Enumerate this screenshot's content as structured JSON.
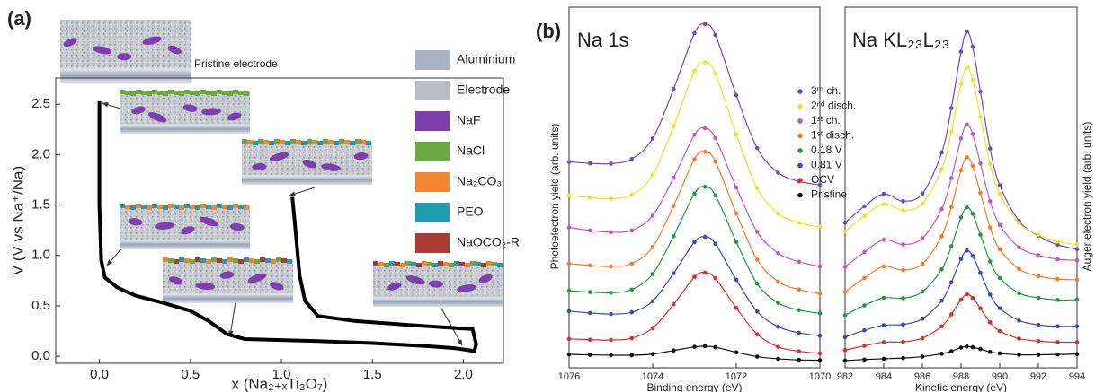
{
  "panel_labels": [
    "(a)",
    "(b)"
  ],
  "chart_data": [
    {
      "type": "line",
      "xlabel": "x (Na₂₊ₓTi₃O₇)",
      "ylabel": "V (V vs Na⁺/Na)",
      "color": "#000000",
      "x": [
        0.0,
        0.0,
        0.01,
        0.03,
        0.1,
        0.2,
        0.35,
        0.5,
        0.6,
        0.7,
        0.8,
        1.0,
        1.2,
        1.5,
        1.8,
        1.95,
        2.03,
        2.06,
        2.07,
        2.05,
        1.95,
        1.7,
        1.4,
        1.2,
        1.13,
        1.1,
        1.08,
        1.06
      ],
      "values": [
        2.53,
        1.5,
        0.95,
        0.78,
        0.68,
        0.6,
        0.53,
        0.45,
        0.35,
        0.22,
        0.17,
        0.16,
        0.15,
        0.13,
        0.1,
        0.08,
        0.06,
        0.05,
        0.12,
        0.27,
        0.28,
        0.31,
        0.35,
        0.4,
        0.55,
        0.8,
        1.2,
        1.58
      ],
      "xlim": [
        -0.24,
        2.22
      ],
      "ylim": [
        -0.07,
        2.76
      ],
      "xticks": [
        {
          "value": 0,
          "label": "0.0"
        },
        {
          "value": 0.5,
          "label": "0.5"
        },
        {
          "value": 1,
          "label": "1.0"
        },
        {
          "value": 1.5,
          "label": "1.5"
        },
        {
          "value": 2,
          "label": "2.0"
        }
      ],
      "yticks": [
        {
          "value": 0,
          "label": "0.0"
        },
        {
          "value": 0.5,
          "label": "0.5"
        },
        {
          "value": 1,
          "label": "1.0"
        },
        {
          "value": 1.5,
          "label": "1.5"
        },
        {
          "value": 2,
          "label": "2.0"
        },
        {
          "value": 2.5,
          "label": "2.5"
        }
      ],
      "annotations": [
        "Pristine electrode"
      ],
      "legend": [
        {
          "name": "Aluminium",
          "color": "#a9b2c2"
        },
        {
          "name": "Electrode",
          "color": "#b9bcc2"
        },
        {
          "name": "NaF",
          "color": "#7d3fae"
        },
        {
          "name": "NaCl",
          "color": "#6ea845"
        },
        {
          "name": "Na₂CO₃",
          "color": "#f5842e"
        },
        {
          "name": "PEO",
          "color": "#1f9bb0"
        },
        {
          "name": "NaOCO₂-R",
          "color": "#a83b32"
        }
      ]
    },
    {
      "type": "line",
      "title": "Na 1s",
      "xlabel": "Binding energy (eV)",
      "ylabel": "Photoelectron yield (arb. units)",
      "x": [
        1076,
        1075.5,
        1075,
        1074.5,
        1074,
        1073.5,
        1073,
        1072.75,
        1072.5,
        1072,
        1071.5,
        1071,
        1070.5,
        1070
      ],
      "xlim": [
        1076,
        1070
      ],
      "xticks": [
        1076,
        1074,
        1072,
        1070
      ],
      "ylim": [
        0,
        10
      ],
      "series": [
        {
          "name": "3ʳᵈ ch.",
          "color": "#7048c0",
          "values": [
            5.71,
            5.67,
            5.66,
            5.79,
            6.36,
            7.73,
            9.28,
            9.53,
            9.23,
            7.56,
            6.09,
            5.41,
            5.17,
            5.07
          ]
        },
        {
          "name": "2ⁿᵈ disch.",
          "color": "#ece41e",
          "values": [
            4.78,
            4.72,
            4.69,
            4.8,
            5.35,
            6.7,
            8.23,
            8.47,
            8.16,
            6.47,
            4.98,
            4.28,
            4.02,
            3.9
          ]
        },
        {
          "name": "1ˢᵗ ch.",
          "color": "#c355c3",
          "values": [
            3.89,
            3.81,
            3.76,
            3.81,
            4.22,
            5.27,
            6.46,
            6.64,
            6.37,
            5.0,
            3.77,
            3.18,
            2.94,
            2.81
          ]
        },
        {
          "name": "1ˢᵗ disch.",
          "color": "#f47a2a",
          "values": [
            2.89,
            2.84,
            2.81,
            2.89,
            3.35,
            4.49,
            5.79,
            5.99,
            5.72,
            4.28,
            3.0,
            2.39,
            2.17,
            2.06
          ]
        },
        {
          "name": "0.18 V",
          "color": "#1c9a3c",
          "values": [
            2.14,
            2.1,
            2.08,
            2.17,
            2.6,
            3.65,
            4.83,
            5.02,
            4.78,
            3.49,
            2.33,
            1.8,
            1.6,
            1.51
          ]
        },
        {
          "name": "0.81 V",
          "color": "#3848b8",
          "values": [
            1.57,
            1.52,
            1.49,
            1.54,
            1.85,
            2.62,
            3.49,
            3.63,
            3.44,
            2.44,
            1.56,
            1.14,
            0.97,
            0.89
          ]
        },
        {
          "name": "OCV",
          "color": "#e22a2a",
          "values": [
            0.8,
            0.78,
            0.77,
            0.82,
            1.1,
            1.76,
            2.52,
            2.64,
            2.48,
            1.66,
            0.93,
            0.58,
            0.46,
            0.4
          ]
        },
        {
          "name": "Pristine",
          "color": "#111111",
          "values": [
            0.37,
            0.36,
            0.35,
            0.35,
            0.38,
            0.48,
            0.58,
            0.6,
            0.57,
            0.43,
            0.31,
            0.25,
            0.22,
            0.21
          ]
        }
      ]
    },
    {
      "type": "line",
      "title": "Na KL₂₃L₂₃",
      "xlabel": "Kinetic energy (eV)",
      "ylabel": "Auger electron yield (arb. units)",
      "x": [
        982,
        983,
        984,
        985,
        986,
        987,
        987.5,
        988,
        988.3,
        988.6,
        989,
        989.5,
        990,
        991,
        992,
        993,
        994
      ],
      "xlim": [
        982,
        994
      ],
      "xticks": [
        982,
        984,
        986,
        988,
        990,
        992,
        994
      ],
      "ylim": [
        0,
        10
      ],
      "series": [
        {
          "color": "#7048c0",
          "values": [
            4.02,
            4.48,
            4.82,
            4.62,
            4.83,
            5.97,
            7.2,
            8.77,
            9.32,
            8.9,
            7.66,
            6.08,
            5.06,
            4.07,
            3.66,
            3.41,
            3.29
          ]
        },
        {
          "color": "#ece41e",
          "values": [
            3.78,
            4.21,
            4.54,
            4.37,
            4.55,
            5.51,
            6.55,
            7.87,
            8.34,
            7.99,
            6.97,
            5.65,
            4.82,
            4.01,
            3.69,
            3.5,
            3.42
          ]
        },
        {
          "color": "#c355c3",
          "values": [
            2.8,
            3.21,
            3.55,
            3.42,
            3.59,
            4.4,
            5.26,
            6.36,
            6.75,
            6.48,
            5.67,
            4.62,
            3.96,
            3.34,
            3.12,
            3.01,
            2.98
          ]
        },
        {
          "color": "#f47a2a",
          "values": [
            2.1,
            2.49,
            2.81,
            2.71,
            2.88,
            3.65,
            4.46,
            5.48,
            5.84,
            5.6,
            4.85,
            3.89,
            3.29,
            2.74,
            2.54,
            2.46,
            2.44
          ]
        },
        {
          "color": "#1c9a3c",
          "values": [
            1.46,
            1.73,
            1.94,
            1.93,
            2.11,
            2.73,
            3.37,
            4.17,
            4.45,
            4.27,
            3.69,
            2.95,
            2.49,
            2.07,
            1.94,
            1.88,
            1.89
          ]
        },
        {
          "color": "#3848b8",
          "values": [
            0.85,
            1.04,
            1.18,
            1.2,
            1.36,
            1.86,
            2.37,
            3.02,
            3.25,
            3.1,
            2.63,
            2.03,
            1.65,
            1.31,
            1.19,
            1.15,
            1.15
          ]
        },
        {
          "color": "#e22a2a",
          "values": [
            0.49,
            0.61,
            0.71,
            0.72,
            0.82,
            1.15,
            1.48,
            1.89,
            2.04,
            1.94,
            1.65,
            1.26,
            1.02,
            0.81,
            0.74,
            0.71,
            0.71
          ]
        },
        {
          "color": "#111111",
          "values": [
            0.2,
            0.23,
            0.25,
            0.27,
            0.31,
            0.39,
            0.46,
            0.56,
            0.59,
            0.57,
            0.52,
            0.44,
            0.4,
            0.36,
            0.36,
            0.37,
            0.38
          ]
        }
      ]
    }
  ]
}
